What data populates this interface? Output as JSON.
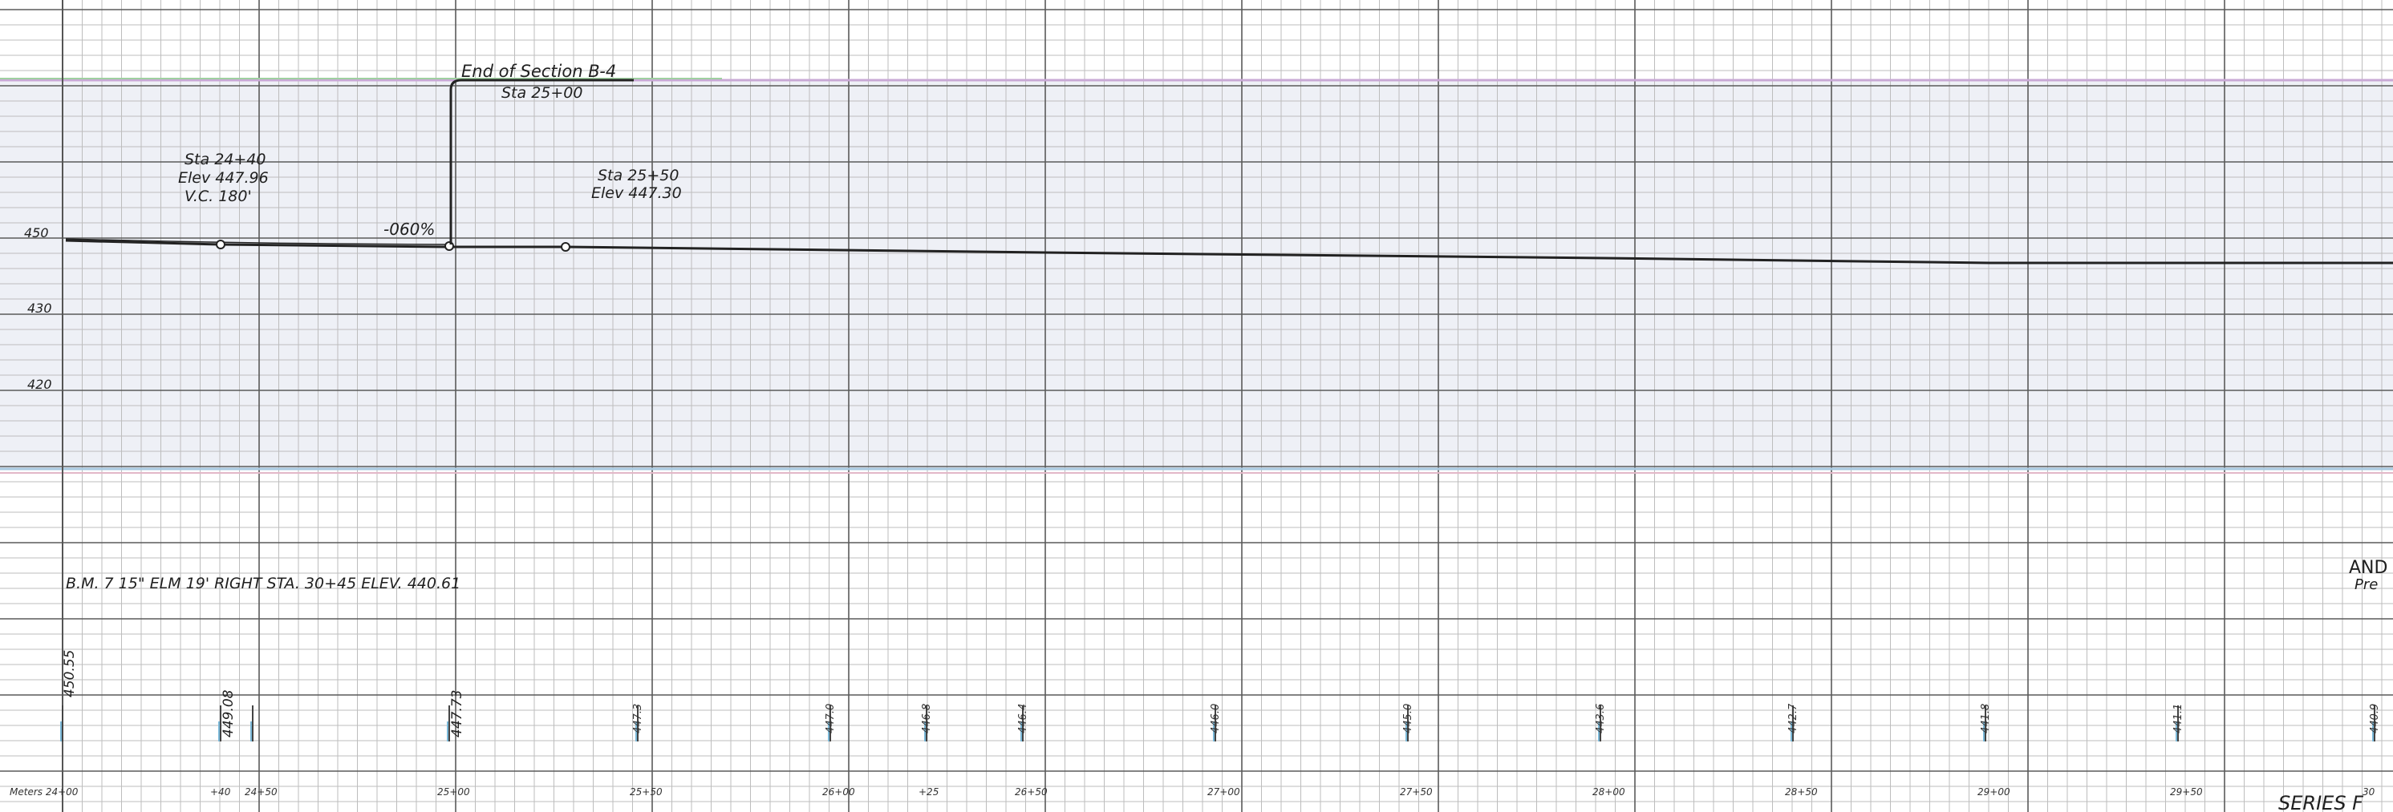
{
  "grade_annotation": {
    "end_of_section": "End of Section B-4",
    "end_station": "Sta 25+00",
    "pvi": [
      "Sta 24+40",
      "Elev 447.96",
      "V.C. 180'"
    ],
    "ptc": [
      "Sta 25+50",
      "Elev 447.30"
    ],
    "grade": "-060%"
  },
  "elevation_labels": [
    "450",
    "430",
    "420"
  ],
  "benchmark_note": "B.M. 7  15\" ELM  19' RIGHT  STA. 30+45  ELEV. 440.61",
  "profile_elevations": [
    "450.55",
    "449.08",
    "447.73"
  ],
  "ground_readings": [
    "447.3",
    "447.0",
    "446.8",
    "446.4",
    "446.0",
    "445.0",
    "443.6",
    "442.7",
    "441.8",
    "441.1",
    "440.9"
  ],
  "station_labels": [
    "Meters 24+00",
    "+40",
    "24+50",
    "25+00",
    "25+50",
    "26+00",
    "+25",
    "26+50",
    "27+00",
    "27+50",
    "28+00",
    "28+50",
    "29+00",
    "29+50",
    "30"
  ],
  "edge_text": {
    "right_margin": [
      "AND",
      "Pre"
    ],
    "series_fragment": "SERIES F"
  },
  "colors": {
    "grid_line": "#9a9a9a",
    "heavy_line": "#444444",
    "shade_band": "#eef0f6",
    "ink": "#1f1f1f"
  }
}
